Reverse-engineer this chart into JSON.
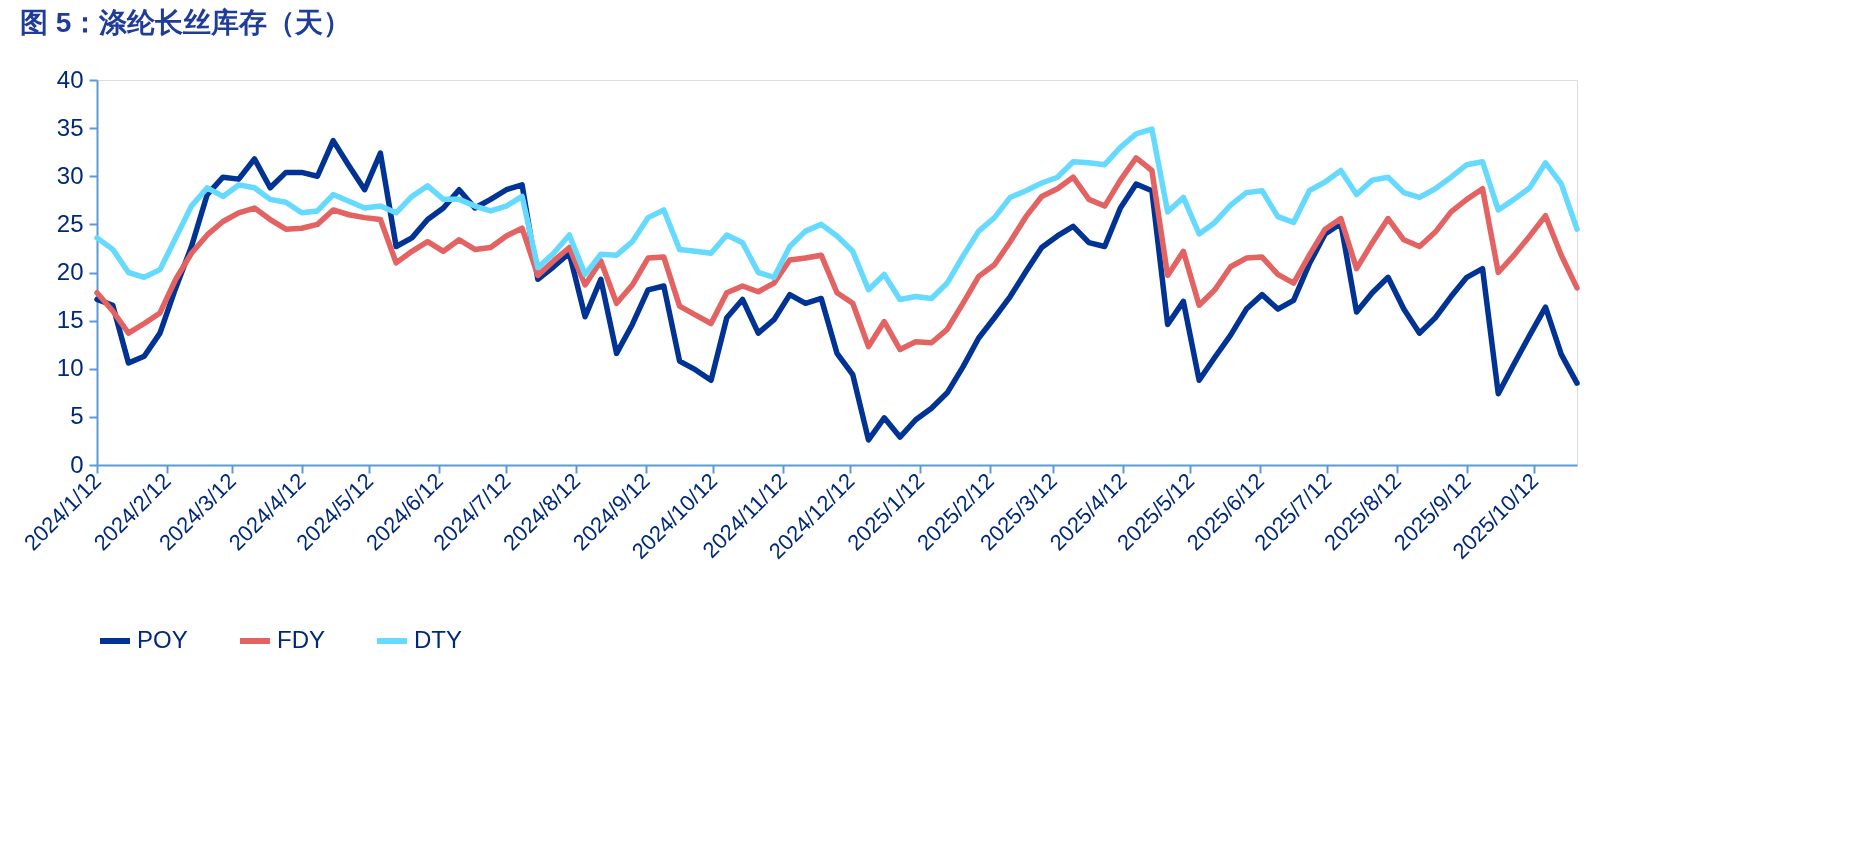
{
  "chart_data": {
    "type": "line",
    "title": "图 5：涤纶长丝库存（天）",
    "x": [
      "2024-01-12",
      "2024-01-19",
      "2024-01-26",
      "2024-02-02",
      "2024-02-09",
      "2024-02-16",
      "2024-02-23",
      "2024-03-01",
      "2024-03-08",
      "2024-03-15",
      "2024-03-22",
      "2024-03-29",
      "2024-04-05",
      "2024-04-12",
      "2024-04-19",
      "2024-04-26",
      "2024-05-03",
      "2024-05-10",
      "2024-05-17",
      "2024-05-24",
      "2024-05-31",
      "2024-06-07",
      "2024-06-14",
      "2024-06-21",
      "2024-06-28",
      "2024-07-05",
      "2024-07-12",
      "2024-07-19",
      "2024-07-26",
      "2024-08-02",
      "2024-08-09",
      "2024-08-16",
      "2024-08-23",
      "2024-08-30",
      "2024-09-06",
      "2024-09-13",
      "2024-09-20",
      "2024-09-27",
      "2024-10-04",
      "2024-10-11",
      "2024-10-18",
      "2024-10-25",
      "2024-11-01",
      "2024-11-08",
      "2024-11-15",
      "2024-11-22",
      "2024-11-29",
      "2024-12-06",
      "2024-12-13",
      "2024-12-20",
      "2024-12-27",
      "2025-01-03",
      "2025-01-10",
      "2025-01-17",
      "2025-01-24",
      "2025-01-31",
      "2025-02-07",
      "2025-02-14",
      "2025-02-21",
      "2025-02-28",
      "2025-03-07",
      "2025-03-14",
      "2025-03-21",
      "2025-03-28",
      "2025-04-04",
      "2025-04-11",
      "2025-04-18",
      "2025-04-25",
      "2025-05-02",
      "2025-05-09",
      "2025-05-16",
      "2025-05-23",
      "2025-05-30",
      "2025-06-06",
      "2025-06-13",
      "2025-06-20",
      "2025-06-27",
      "2025-07-04",
      "2025-07-11",
      "2025-07-18",
      "2025-07-25",
      "2025-08-01",
      "2025-08-08",
      "2025-08-15",
      "2025-08-22",
      "2025-08-29",
      "2025-09-05",
      "2025-09-12",
      "2025-09-19",
      "2025-09-26",
      "2025-10-03",
      "2025-10-10",
      "2025-10-17",
      "2025-10-24",
      "2025-10-31"
    ],
    "series": [
      {
        "name": "POY",
        "color": "#003393",
        "values": [
          17.2,
          16.6,
          10.6,
          11.3,
          13.7,
          18.4,
          22.7,
          28.1,
          29.9,
          29.7,
          31.8,
          28.8,
          30.4,
          30.4,
          30.0,
          33.7,
          31.1,
          28.6,
          32.4,
          22.7,
          23.6,
          25.5,
          26.7,
          28.6,
          26.7,
          27.6,
          28.6,
          29.1,
          19.3,
          20.6,
          22.0,
          15.4,
          19.3,
          11.6,
          14.6,
          18.2,
          18.6,
          10.8,
          9.9,
          8.8,
          15.3,
          17.2,
          13.7,
          15.1,
          17.7,
          16.8,
          17.3,
          11.6,
          9.4,
          2.6,
          4.9,
          2.9,
          4.7,
          5.9,
          7.5,
          10.2,
          13.2,
          15.3,
          17.5,
          20.1,
          22.6,
          23.8,
          24.8,
          23.1,
          22.7,
          26.7,
          29.2,
          28.5,
          14.6,
          17.0,
          8.8,
          11.2,
          13.5,
          16.2,
          17.7,
          16.2,
          17.1,
          20.9,
          24.0,
          25.1,
          15.9,
          17.9,
          19.5,
          16.2,
          13.7,
          15.3,
          17.5,
          19.5,
          20.4,
          7.4,
          10.5,
          13.5,
          16.4,
          11.5,
          8.5
        ]
      },
      {
        "name": "FDY",
        "color": "#e36262",
        "values": [
          17.9,
          16.0,
          13.7,
          14.7,
          15.8,
          19.3,
          22.0,
          23.9,
          25.3,
          26.2,
          26.7,
          25.5,
          24.5,
          24.6,
          25.0,
          26.5,
          26.0,
          25.7,
          25.5,
          21.0,
          22.2,
          23.2,
          22.2,
          23.4,
          22.4,
          22.6,
          23.8,
          24.6,
          19.7,
          21.2,
          22.6,
          18.7,
          21.2,
          16.8,
          18.7,
          21.5,
          21.6,
          16.5,
          15.6,
          14.7,
          17.9,
          18.6,
          18.0,
          18.9,
          21.3,
          21.5,
          21.8,
          17.9,
          16.8,
          12.3,
          14.9,
          12.0,
          12.8,
          12.7,
          14.1,
          16.8,
          19.6,
          20.8,
          23.2,
          25.8,
          27.9,
          28.7,
          29.9,
          27.6,
          26.9,
          29.6,
          31.9,
          30.6,
          19.7,
          22.2,
          16.6,
          18.2,
          20.6,
          21.5,
          21.6,
          19.8,
          18.9,
          21.8,
          24.5,
          25.6,
          20.4,
          23.1,
          25.6,
          23.4,
          22.7,
          24.2,
          26.3,
          27.6,
          28.7,
          20.0,
          21.8,
          23.8,
          25.9,
          21.8,
          18.4
        ]
      },
      {
        "name": "DTY",
        "color": "#66d9ff",
        "values": [
          23.6,
          22.4,
          20.0,
          19.5,
          20.3,
          23.6,
          26.9,
          28.8,
          27.9,
          29.1,
          28.8,
          27.6,
          27.3,
          26.2,
          26.4,
          28.1,
          27.4,
          26.7,
          26.9,
          26.2,
          27.9,
          29.0,
          27.6,
          27.6,
          26.9,
          26.4,
          26.9,
          27.9,
          20.5,
          22.0,
          23.9,
          19.8,
          21.9,
          21.8,
          23.2,
          25.7,
          26.5,
          22.4,
          22.2,
          22.0,
          23.9,
          23.1,
          20.0,
          19.5,
          22.7,
          24.3,
          25.0,
          23.8,
          22.2,
          18.2,
          19.8,
          17.2,
          17.5,
          17.3,
          18.9,
          21.7,
          24.3,
          25.7,
          27.8,
          28.5,
          29.3,
          29.9,
          31.5,
          31.4,
          31.2,
          33.0,
          34.4,
          34.9,
          26.3,
          27.8,
          24.0,
          25.2,
          27.0,
          28.3,
          28.5,
          25.8,
          25.2,
          28.5,
          29.4,
          30.6,
          28.1,
          29.6,
          29.9,
          28.3,
          27.8,
          28.7,
          29.9,
          31.2,
          31.5,
          26.5,
          27.6,
          28.8,
          31.4,
          29.2,
          24.5
        ]
      }
    ],
    "xlim": [
      "2024-01-12",
      "2025-10-31"
    ],
    "xticks": [
      {
        "value": "2024-01-12",
        "label": "2024/1/12"
      },
      {
        "value": "2024-02-12",
        "label": "2024/2/12"
      },
      {
        "value": "2024-03-12",
        "label": "2024/3/12"
      },
      {
        "value": "2024-04-12",
        "label": "2024/4/12"
      },
      {
        "value": "2024-05-12",
        "label": "2024/5/12"
      },
      {
        "value": "2024-06-12",
        "label": "2024/6/12"
      },
      {
        "value": "2024-07-12",
        "label": "2024/7/12"
      },
      {
        "value": "2024-08-12",
        "label": "2024/8/12"
      },
      {
        "value": "2024-09-12",
        "label": "2024/9/12"
      },
      {
        "value": "2024-10-12",
        "label": "2024/10/12"
      },
      {
        "value": "2024-11-12",
        "label": "2024/11/12"
      },
      {
        "value": "2024-12-12",
        "label": "2024/12/12"
      },
      {
        "value": "2025-01-12",
        "label": "2025/1/12"
      },
      {
        "value": "2025-02-12",
        "label": "2025/2/12"
      },
      {
        "value": "2025-03-12",
        "label": "2025/3/12"
      },
      {
        "value": "2025-04-12",
        "label": "2025/4/12"
      },
      {
        "value": "2025-05-12",
        "label": "2025/5/12"
      },
      {
        "value": "2025-06-12",
        "label": "2025/6/12"
      },
      {
        "value": "2025-07-12",
        "label": "2025/7/12"
      },
      {
        "value": "2025-08-12",
        "label": "2025/8/12"
      },
      {
        "value": "2025-09-12",
        "label": "2025/9/12"
      },
      {
        "value": "2025-10-12",
        "label": "2025/10/12"
      }
    ],
    "ylim": [
      0,
      40
    ],
    "yticks": [
      0,
      5,
      10,
      15,
      20,
      25,
      30,
      35,
      40
    ],
    "grid": false,
    "legend": "bottom",
    "marker": "none",
    "line_style": "solid"
  }
}
